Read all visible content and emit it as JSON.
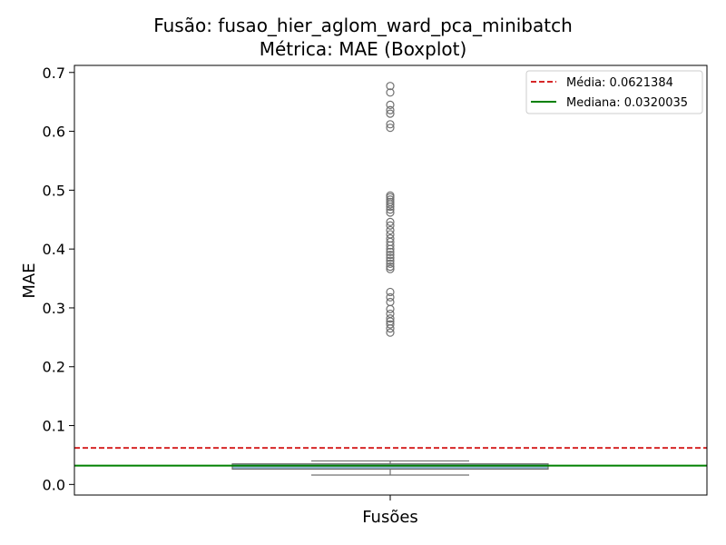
{
  "chart_data": {
    "type": "boxplot",
    "title": "Fusão: fusao_hier_aglom_ward_pca_minibatch",
    "subtitle": "Métrica: MAE (Boxplot)",
    "xlabel": "Fusões",
    "ylabel": "MAE",
    "ylim": [
      -0.018,
      0.712
    ],
    "yticks": [
      "0.0",
      "0.1",
      "0.2",
      "0.3",
      "0.4",
      "0.5",
      "0.6",
      "0.7"
    ],
    "ytick_values": [
      0.0,
      0.1,
      0.2,
      0.3,
      0.4,
      0.5,
      0.6,
      0.7
    ],
    "grid": false,
    "legend_position": "top-right",
    "box": {
      "q1": 0.026,
      "median": 0.0320035,
      "q3": 0.035,
      "whisker_low": 0.016,
      "whisker_high": 0.04
    },
    "outliers": [
      0.258,
      0.265,
      0.272,
      0.277,
      0.282,
      0.29,
      0.298,
      0.31,
      0.318,
      0.327,
      0.366,
      0.37,
      0.375,
      0.38,
      0.385,
      0.39,
      0.395,
      0.4,
      0.406,
      0.412,
      0.418,
      0.425,
      0.432,
      0.44,
      0.446,
      0.462,
      0.467,
      0.472,
      0.476,
      0.48,
      0.484,
      0.488,
      0.491,
      0.606,
      0.612,
      0.63,
      0.636,
      0.645,
      0.666,
      0.677
    ],
    "mean_line": {
      "value": 0.0621384,
      "label": "Média: 0.0621384",
      "color": "#d62728"
    },
    "median_line": {
      "value": 0.0320035,
      "label": "Mediana: 0.0320035",
      "color": "#008000"
    },
    "box_color": "#8fb3c9",
    "edge_color": "#707070"
  }
}
